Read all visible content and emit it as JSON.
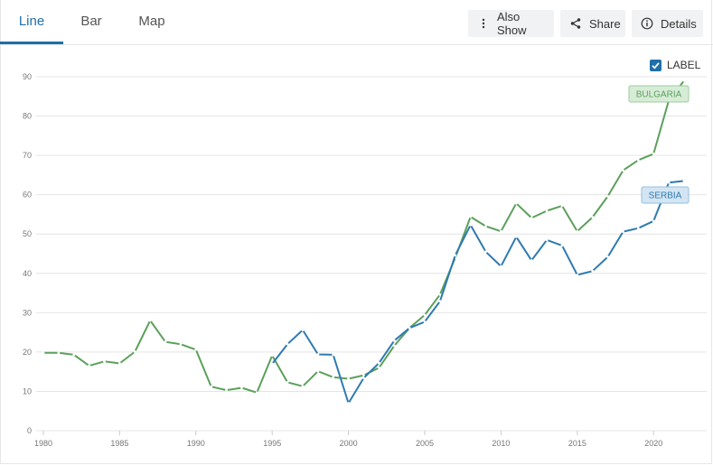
{
  "tabs": [
    {
      "label": "Line"
    },
    {
      "label": "Bar"
    },
    {
      "label": "Map"
    }
  ],
  "buttons": {
    "also_show": "Also Show",
    "share": "Share",
    "details": "Details"
  },
  "label_toggle": {
    "text": "LABEL",
    "checked": true
  },
  "colors": {
    "accent": "#1f6fa8",
    "bulgaria": "#5ba05b",
    "serbia": "#2f7ab0"
  },
  "chart_data": {
    "type": "line",
    "title": "",
    "xlabel": "",
    "ylabel": "",
    "xlim": [
      1980,
      2022
    ],
    "ylim": [
      0,
      90
    ],
    "yticks": [
      0,
      10,
      20,
      30,
      40,
      50,
      60,
      70,
      80,
      90
    ],
    "xticks": [
      1980,
      1985,
      1990,
      1995,
      2000,
      2005,
      2010,
      2015,
      2020
    ],
    "grid": "horizontal",
    "series": [
      {
        "name": "BULGARIA",
        "color": "#5ba05b",
        "x": [
          1980,
          1981,
          1982,
          1983,
          1984,
          1985,
          1986,
          1987,
          1988,
          1989,
          1990,
          1991,
          1992,
          1993,
          1994,
          1995,
          1996,
          1997,
          1998,
          1999,
          2000,
          2001,
          2002,
          2003,
          2004,
          2005,
          2006,
          2007,
          2008,
          2009,
          2010,
          2011,
          2012,
          2013,
          2014,
          2015,
          2016,
          2017,
          2018,
          2019,
          2020,
          2021,
          2022
        ],
        "y": [
          19.8,
          19.8,
          19.3,
          16.5,
          17.6,
          17.1,
          20.1,
          28.0,
          22.6,
          22.0,
          20.6,
          11.2,
          10.3,
          10.9,
          9.7,
          19.1,
          12.3,
          11.3,
          15.1,
          13.6,
          13.2,
          14.1,
          16.0,
          21.6,
          26.1,
          29.4,
          34.6,
          44.0,
          54.4,
          52.0,
          50.7,
          57.8,
          54.1,
          55.9,
          57.2,
          50.7,
          54.3,
          59.6,
          66.2,
          68.8,
          70.4,
          84.0,
          89.0
        ]
      },
      {
        "name": "SERBIA",
        "color": "#2f7ab0",
        "x": [
          1995,
          1996,
          1997,
          1998,
          1999,
          2000,
          2001,
          2002,
          2003,
          2004,
          2005,
          2006,
          2007,
          2008,
          2009,
          2010,
          2011,
          2012,
          2013,
          2014,
          2015,
          2016,
          2017,
          2018,
          2019,
          2020,
          2021,
          2022
        ],
        "y": [
          17.0,
          22.0,
          25.6,
          19.4,
          19.3,
          7.0,
          13.4,
          17.2,
          22.9,
          26.1,
          27.7,
          32.9,
          44.6,
          52.3,
          45.5,
          41.8,
          49.3,
          43.3,
          48.5,
          47.1,
          39.6,
          40.6,
          44.2,
          50.6,
          51.5,
          53.3,
          63.1,
          63.5
        ]
      }
    ]
  }
}
